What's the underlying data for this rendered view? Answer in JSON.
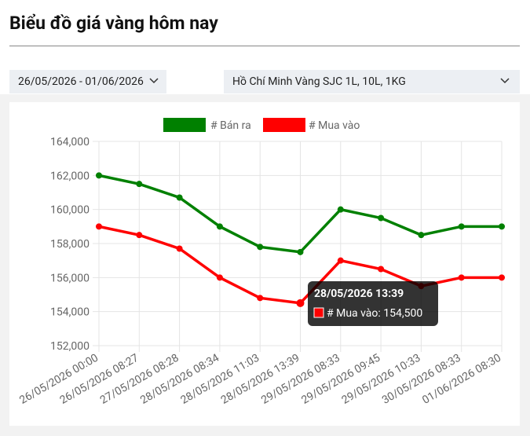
{
  "header": {
    "title": "Biểu đồ giá vàng hôm nay"
  },
  "filters": {
    "date_range": "26/05/2026 - 01/06/2026",
    "product": "Hồ Chí Minh Vàng SJC 1L, 10L, 1KG"
  },
  "chart_data": {
    "type": "line",
    "categories": [
      "26/05/2026 00:00",
      "26/05/2026 08:27",
      "27/05/2026 08:28",
      "28/05/2026 08:34",
      "28/05/2026 11:03",
      "28/05/2026 13:39",
      "29/05/2026 08:33",
      "29/05/2026 09:45",
      "29/05/2026 10:33",
      "30/05/2026 08:33",
      "01/06/2026 08:30"
    ],
    "series": [
      {
        "name": "# Bán ra",
        "color": "#008000",
        "values": [
          162000,
          161500,
          160700,
          159000,
          157800,
          157500,
          160000,
          159500,
          158500,
          159000,
          159000
        ]
      },
      {
        "name": "# Mua vào",
        "color": "#ff0000",
        "values": [
          159000,
          158500,
          157700,
          156000,
          154800,
          154500,
          157000,
          156500,
          155500,
          156000,
          156000
        ]
      }
    ],
    "ylim": [
      152000,
      164000
    ],
    "yticks": [
      {
        "value": 152000,
        "label": "152,000"
      },
      {
        "value": 154000,
        "label": "154,000"
      },
      {
        "value": 156000,
        "label": "156,000"
      },
      {
        "value": 158000,
        "label": "158,000"
      },
      {
        "value": 160000,
        "label": "160,000"
      },
      {
        "value": 162000,
        "label": "162,000"
      },
      {
        "value": 164000,
        "label": "164,000"
      }
    ],
    "grid": true,
    "legend": "top",
    "tooltip": {
      "title": "28/05/2026 13:39",
      "label": "# Mua vào: 154,500"
    }
  }
}
